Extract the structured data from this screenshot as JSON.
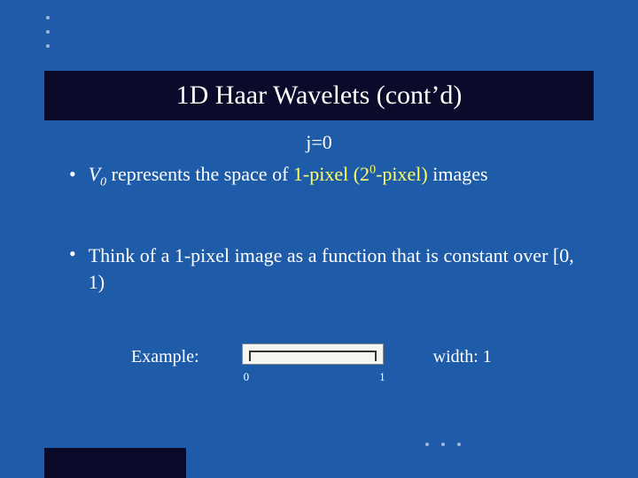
{
  "colors": {
    "background": "#1e5ba8",
    "title_bar": "#0a0a2a",
    "text": "#ffffff",
    "highlight": "#ffff66",
    "dot": "#9db8d8",
    "diagram_bg": "#f5f5f2",
    "diagram_border": "#888888",
    "diagram_line": "#333333"
  },
  "title": "1D Haar Wavelets (cont’d)",
  "subheading": "j=0",
  "bullet1": {
    "v_symbol": "V",
    "v_sub": "0",
    "pre": " represents the space of ",
    "h1": "1-pixel",
    "mid1": " (2",
    "sup": "0",
    "mid2": "-pixel)",
    "post": " images"
  },
  "bullet2": "Think of a 1-pixel image as a function that is constant over [0, 1)",
  "example": {
    "label": "Example:",
    "axis_start": "0",
    "axis_end": "1",
    "width_label": "width: 1"
  }
}
